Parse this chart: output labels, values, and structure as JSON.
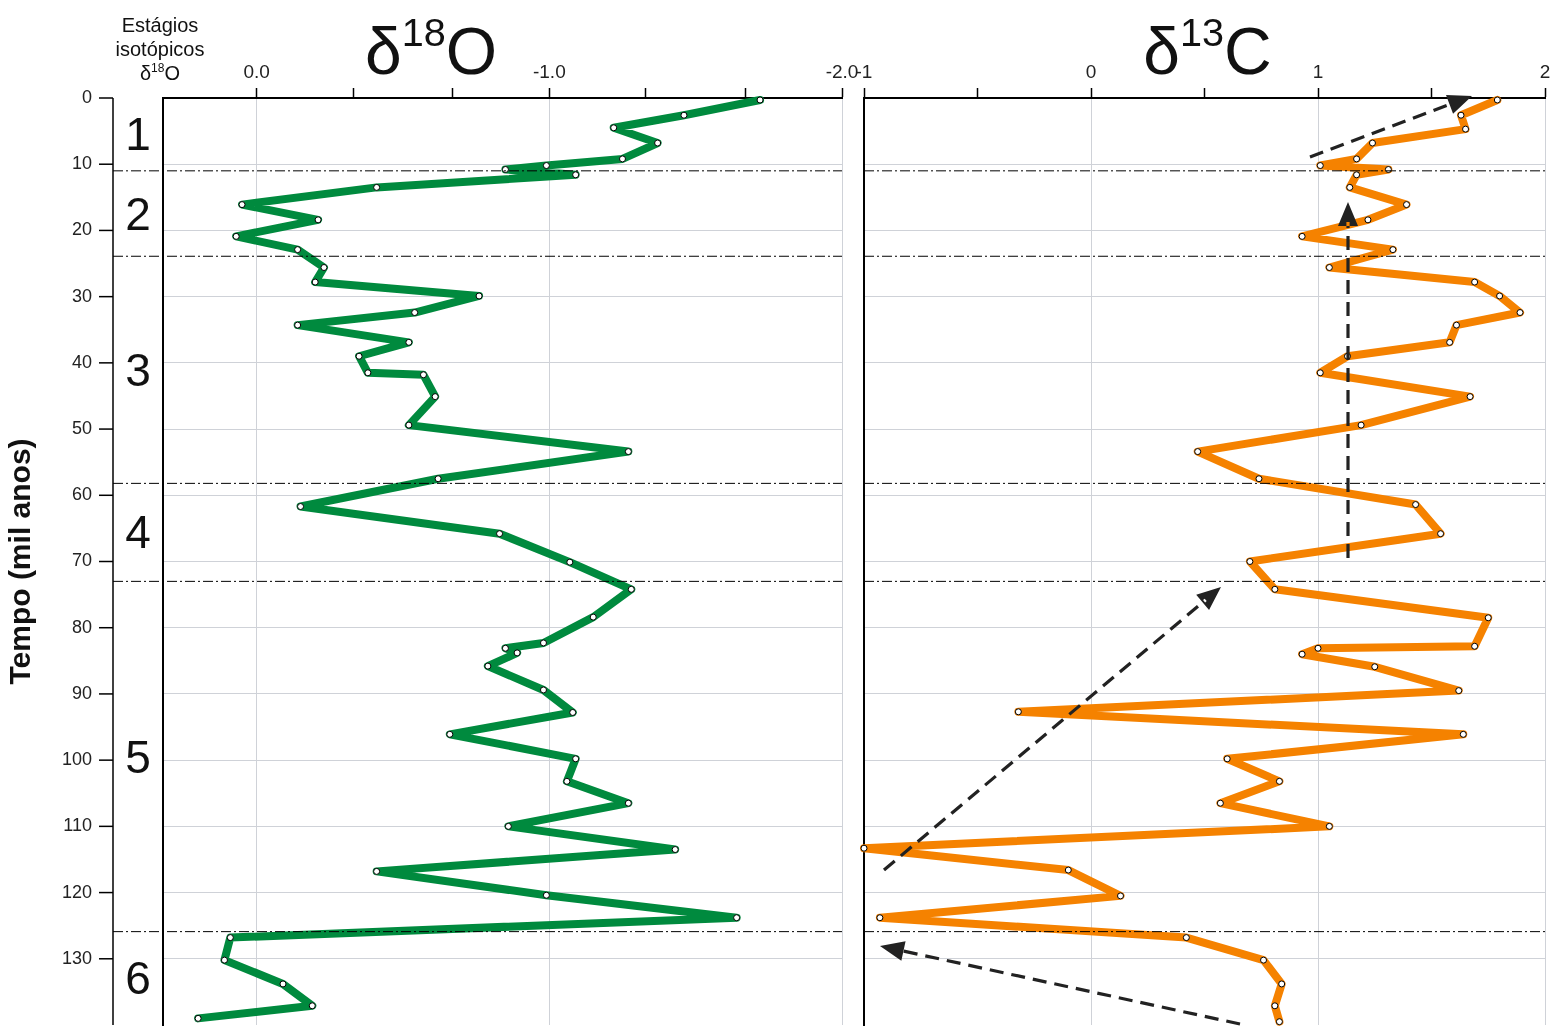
{
  "chart_data": [
    {
      "type": "line",
      "title": "δ$^{18}$O",
      "ylabel": "Tempo (mil anos)",
      "xlim": [
        0.32,
        -2.0
      ],
      "xticks": [
        {
          "value": 0,
          "label": "0.0"
        },
        {
          "value": -0.33,
          "label": null
        },
        {
          "value": -0.67,
          "label": null
        },
        {
          "value": -1,
          "label": "-1.0"
        },
        {
          "value": -1.33,
          "label": null
        },
        {
          "value": -1.67,
          "label": null
        },
        {
          "value": -2,
          "label": "-2.0"
        }
      ],
      "ylim": [
        140,
        0
      ],
      "yticks": [
        0,
        10,
        20,
        30,
        40,
        50,
        60,
        70,
        80,
        90,
        100,
        110,
        120,
        130
      ],
      "grid": true,
      "marker": "circle",
      "series": [
        {
          "color": "#008a3e",
          "x": [
            -1.72,
            -1.46,
            -1.22,
            -1.37,
            -1.25,
            -0.99,
            -0.85,
            -1.09,
            -0.41,
            0.05,
            -0.21,
            0.07,
            -0.14,
            -0.23,
            -0.2,
            -0.76,
            -0.54,
            -0.14,
            -0.52,
            -0.35,
            -0.38,
            -0.57,
            -0.61,
            -0.52,
            -1.27,
            -0.62,
            -0.15,
            -0.83,
            -1.07,
            -1.28,
            -1.15,
            -0.98,
            -0.85,
            -0.89,
            -0.79,
            -0.98,
            -1.08,
            -0.66,
            -1.09,
            -1.06,
            -1.27,
            -0.86,
            -1.43,
            -0.41,
            -0.99,
            -1.64,
            0.09,
            0.11,
            -0.09,
            -0.19,
            0.2
          ],
          "values": [
            0.3,
            2.6,
            4.5,
            6.8,
            9.2,
            10.2,
            10.8,
            11.6,
            13.5,
            16.1,
            18.4,
            20.9,
            22.9,
            25.6,
            27.8,
            29.9,
            32.4,
            34.3,
            36.9,
            39,
            41.5,
            41.8,
            45.1,
            49.4,
            53.4,
            57.5,
            61.7,
            65.8,
            70.1,
            74.2,
            78.4,
            82.3,
            83.1,
            83.8,
            85.8,
            89.4,
            92.8,
            96.1,
            99.8,
            103.2,
            106.5,
            110,
            113.5,
            116.8,
            120.4,
            123.8,
            126.8,
            130.2,
            133.8,
            137.1,
            139
          ]
        }
      ],
      "ref_lines": [
        {
          "axis": "y",
          "value": 11
        },
        {
          "axis": "y",
          "value": 23.9
        },
        {
          "axis": "y",
          "value": 58.2
        },
        {
          "axis": "y",
          "value": 73
        },
        {
          "axis": "y",
          "value": 125.9
        }
      ],
      "line_style": "solid",
      "annotations": [
        "Estágios isotópicos δ$^{18}$O",
        "1",
        "2",
        "3",
        "4",
        "5",
        "6"
      ]
    },
    {
      "type": "line",
      "title": "δ$^{13}$C",
      "xlim": [
        -1,
        2
      ],
      "xticks": [
        -1,
        {
          "value": -0.5,
          "label": null
        },
        0,
        {
          "value": 0.5,
          "label": null
        },
        1,
        {
          "value": 1.5,
          "label": null
        },
        2
      ],
      "ylim": [
        140,
        0
      ],
      "yticks": [
        0,
        10,
        20,
        30,
        40,
        50,
        60,
        70,
        80,
        90,
        100,
        110,
        120,
        130
      ],
      "tick_labels": "x",
      "grid": true,
      "marker": "circle",
      "series": [
        {
          "color": "#f58200",
          "x": [
            1.79,
            1.63,
            1.65,
            1.24,
            1.17,
            1.01,
            1.31,
            1.17,
            1.14,
            1.39,
            1.22,
            0.93,
            1.33,
            1.05,
            1.69,
            1.8,
            1.89,
            1.61,
            1.58,
            1.13,
            1.01,
            1.67,
            1.19,
            0.47,
            0.74,
            1.43,
            1.54,
            0.7,
            0.81,
            1.75,
            1.69,
            1,
            0.93,
            1.25,
            1.62,
            -0.32,
            1.64,
            0.6,
            0.83,
            0.57,
            1.05,
            -1,
            -0.1,
            0.13,
            -0.93,
            0.42,
            0.76,
            0.84,
            0.81,
            0.83
          ],
          "values": [
            0.3,
            2.6,
            4.7,
            6.8,
            9.2,
            10.2,
            10.8,
            11.6,
            13.5,
            16.1,
            18.4,
            20.9,
            22.9,
            25.6,
            27.8,
            29.9,
            32.4,
            34.3,
            36.9,
            39,
            41.5,
            45.1,
            49.4,
            53.4,
            57.5,
            61.4,
            65.8,
            70,
            74.2,
            78.5,
            82.8,
            83.1,
            84,
            85.9,
            89.5,
            92.7,
            96.1,
            99.8,
            103.2,
            106.5,
            110,
            113.3,
            116.6,
            120.5,
            123.8,
            126.8,
            130.2,
            133.8,
            137.1,
            139.5
          ]
        }
      ],
      "ref_lines": [
        {
          "axis": "y",
          "value": 11
        },
        {
          "axis": "y",
          "value": 23.9
        },
        {
          "axis": "y",
          "value": 58.2
        },
        {
          "axis": "y",
          "value": 73
        },
        {
          "axis": "y",
          "value": 125.9
        }
      ],
      "line_style": "solid"
    }
  ]
}
